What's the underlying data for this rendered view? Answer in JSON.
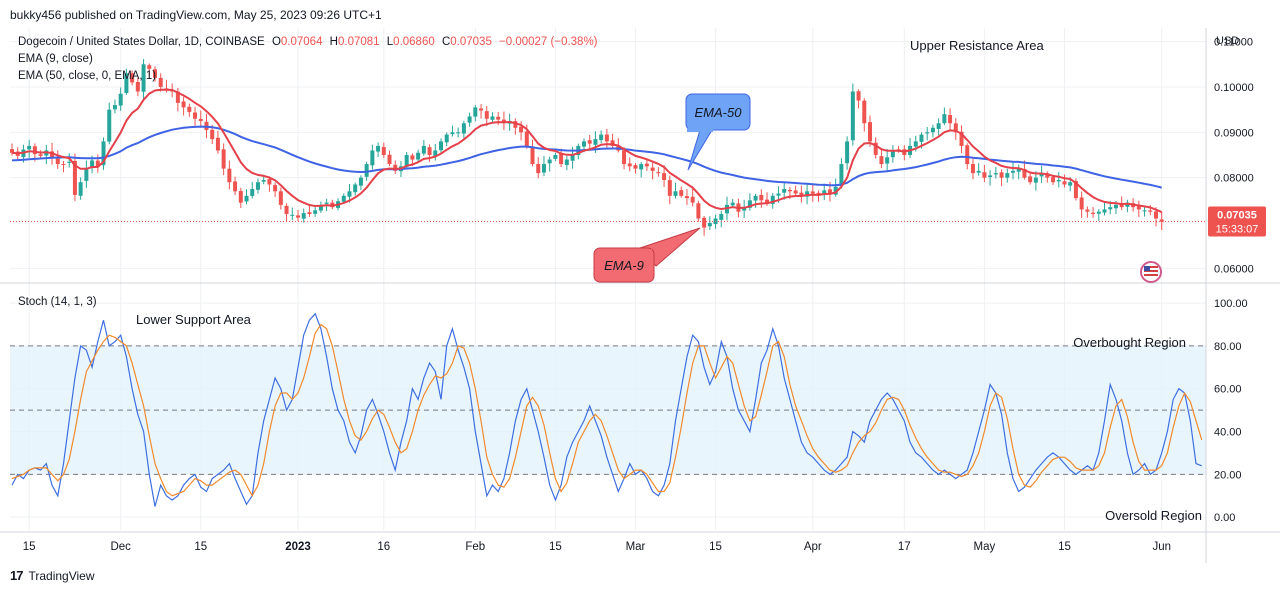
{
  "header": {
    "published": "bukky456 published on TradingView.com, May 25, 2023 09:26 UTC+1"
  },
  "footer": {
    "brand": "TradingView",
    "logo_text": "17"
  },
  "colors": {
    "up": "#26a69a",
    "down": "#ef5350",
    "ema9": "#e5414a",
    "ema50": "#3f63e4",
    "stoch_k": "#3d6fe0",
    "stoch_d": "#f08a2c",
    "band": "#e3f2fd",
    "grid": "#eef0f3"
  },
  "legend": {
    "symbol": "Dogecoin / United States Dollar, 1D, COINBASE",
    "ohlc": [
      {
        "label": "O",
        "value": "0.07064"
      },
      {
        "label": "H",
        "value": "0.07081"
      },
      {
        "label": "L",
        "value": "0.06860"
      },
      {
        "label": "C",
        "value": "0.07035"
      }
    ],
    "change": "−0.00027 (−0.38%)",
    "ema9": "EMA (9, close)",
    "ema50": "EMA (50, close, 0, EMA, 1)"
  },
  "annotations": {
    "upper_resistance": "Upper Resistance Area",
    "ema50_label": "EMA-50",
    "ema9_label": "EMA-9",
    "stoch_title": "Stoch (14, 1, 3)",
    "lower_support": "Lower Support Area",
    "overbought": "Overbought Region",
    "oversold": "Oversold Region"
  },
  "price_badge": {
    "value": "0.07035",
    "countdown": "15:33:07"
  },
  "chart_data": [
    {
      "type": "candlestick",
      "currency": "USD",
      "ylim": [
        0.057,
        0.113
      ],
      "yticks": [
        "0.06000",
        "0.07000",
        "0.08000",
        "0.09000",
        "0.10000",
        "0.11000"
      ],
      "xticks": [
        {
          "label": "15",
          "idx": 3
        },
        {
          "label": "Dec",
          "idx": 19
        },
        {
          "label": "15",
          "idx": 33
        },
        {
          "label": "2023",
          "idx": 50
        },
        {
          "label": "16",
          "idx": 65
        },
        {
          "label": "Feb",
          "idx": 81
        },
        {
          "label": "15",
          "idx": 95
        },
        {
          "label": "Mar",
          "idx": 109
        },
        {
          "label": "15",
          "idx": 123
        },
        {
          "label": "Apr",
          "idx": 140
        },
        {
          "label": "17",
          "idx": 156
        },
        {
          "label": "May",
          "idx": 170
        },
        {
          "label": "15",
          "idx": 184
        },
        {
          "label": "Jun",
          "idx": 201
        }
      ],
      "close": [
        0.0855,
        0.0848,
        0.0862,
        0.087,
        0.0852,
        0.0848,
        0.086,
        0.0845,
        0.083,
        0.083,
        0.0835,
        0.0762,
        0.079,
        0.082,
        0.0838,
        0.0825,
        0.088,
        0.095,
        0.096,
        0.0985,
        0.103,
        0.101,
        0.099,
        0.105,
        0.104,
        0.102,
        0.1,
        0.0995,
        0.099,
        0.0965,
        0.0955,
        0.0945,
        0.093,
        0.0925,
        0.0905,
        0.0885,
        0.086,
        0.082,
        0.079,
        0.077,
        0.0745,
        0.076,
        0.0775,
        0.079,
        0.0795,
        0.0785,
        0.077,
        0.074,
        0.072,
        0.0718,
        0.0712,
        0.0722,
        0.072,
        0.0728,
        0.074,
        0.0745,
        0.0735,
        0.0748,
        0.076,
        0.077,
        0.0785,
        0.08,
        0.083,
        0.086,
        0.087,
        0.085,
        0.083,
        0.0815,
        0.0825,
        0.085,
        0.084,
        0.0855,
        0.087,
        0.085,
        0.086,
        0.088,
        0.0895,
        0.09,
        0.09,
        0.092,
        0.0935,
        0.0955,
        0.0948,
        0.093,
        0.0935,
        0.0928,
        0.092,
        0.0925,
        0.091,
        0.09,
        0.087,
        0.083,
        0.081,
        0.083,
        0.084,
        0.085,
        0.083,
        0.084,
        0.085,
        0.087,
        0.088,
        0.0875,
        0.0885,
        0.0895,
        0.088,
        0.087,
        0.086,
        0.083,
        0.0825,
        0.082,
        0.083,
        0.0825,
        0.0815,
        0.081,
        0.0795,
        0.076,
        0.077,
        0.076,
        0.0755,
        0.0745,
        0.071,
        0.069,
        0.07,
        0.071,
        0.072,
        0.074,
        0.0745,
        0.0725,
        0.0735,
        0.075,
        0.076,
        0.075,
        0.0745,
        0.076,
        0.0765,
        0.0775,
        0.077,
        0.0765,
        0.076,
        0.077,
        0.0765,
        0.076,
        0.0772,
        0.0765,
        0.078,
        0.083,
        0.088,
        0.099,
        0.097,
        0.092,
        0.088,
        0.085,
        0.083,
        0.0845,
        0.086,
        0.086,
        0.085,
        0.087,
        0.088,
        0.0895,
        0.09,
        0.091,
        0.092,
        0.094,
        0.092,
        0.09,
        0.087,
        0.083,
        0.081,
        0.0815,
        0.08,
        0.0805,
        0.081,
        0.08,
        0.081,
        0.0815,
        0.082,
        0.08,
        0.079,
        0.08,
        0.081,
        0.08,
        0.079,
        0.0795,
        0.0785,
        0.079,
        0.0755,
        0.073,
        0.0725,
        0.072,
        0.0725,
        0.073,
        0.0735,
        0.074,
        0.0735,
        0.0745,
        0.0735,
        0.073,
        0.0728,
        0.0725,
        0.071,
        0.0703
      ],
      "ema_labels": [
        "EMA (9, close)",
        "EMA (50, close, 0, EMA, 1)"
      ],
      "last_price": 0.07035
    },
    {
      "type": "line",
      "title": "Stoch (14, 1, 3)",
      "ylim": [
        -6,
        108
      ],
      "yticks": [
        "0.00",
        "20.00",
        "40.00",
        "60.00",
        "80.00",
        "100.00"
      ],
      "bands": [
        20,
        50,
        80
      ],
      "k": [
        15,
        20,
        18,
        22,
        23,
        22,
        25,
        15,
        10,
        25,
        45,
        65,
        80,
        78,
        70,
        82,
        92,
        80,
        82,
        85,
        75,
        60,
        48,
        40,
        20,
        5,
        15,
        10,
        8,
        10,
        15,
        18,
        20,
        14,
        12,
        18,
        20,
        22,
        25,
        18,
        12,
        6,
        10,
        30,
        45,
        55,
        65,
        60,
        50,
        55,
        70,
        85,
        92,
        95,
        88,
        75,
        60,
        50,
        45,
        35,
        30,
        38,
        50,
        55,
        48,
        40,
        30,
        22,
        35,
        45,
        60,
        55,
        65,
        72,
        68,
        55,
        80,
        88,
        78,
        70,
        60,
        40,
        25,
        10,
        15,
        12,
        18,
        30,
        45,
        55,
        60,
        50,
        40,
        28,
        15,
        8,
        15,
        28,
        35,
        40,
        45,
        52,
        45,
        38,
        28,
        20,
        12,
        18,
        25,
        20,
        22,
        18,
        12,
        10,
        15,
        25,
        45,
        60,
        75,
        85,
        82,
        70,
        62,
        68,
        82,
        75,
        60,
        50,
        45,
        40,
        55,
        72,
        78,
        88,
        80,
        65,
        55,
        45,
        35,
        30,
        28,
        25,
        22,
        20,
        22,
        25,
        28,
        40,
        38,
        35,
        45,
        50,
        55,
        58,
        55,
        50,
        45,
        35,
        30,
        28,
        25,
        22,
        20,
        22,
        20,
        18,
        20,
        22,
        30,
        40,
        50,
        62,
        58,
        48,
        30,
        18,
        12,
        14,
        18,
        22,
        25,
        28,
        30,
        28,
        25,
        22,
        20,
        22,
        24,
        22,
        30,
        45,
        62,
        55,
        45,
        30,
        20,
        22,
        25,
        20,
        22,
        30,
        40,
        55,
        60,
        58,
        45,
        25,
        24
      ],
      "d": [
        18,
        19,
        20,
        22,
        23,
        23,
        23,
        20,
        17,
        20,
        27,
        40,
        55,
        68,
        73,
        78,
        82,
        85,
        84,
        82,
        80,
        72,
        62,
        52,
        38,
        25,
        18,
        12,
        10,
        11,
        12,
        15,
        18,
        17,
        15,
        15,
        17,
        19,
        21,
        22,
        20,
        15,
        10,
        15,
        25,
        40,
        52,
        58,
        58,
        55,
        58,
        65,
        75,
        86,
        90,
        88,
        80,
        68,
        55,
        45,
        38,
        36,
        40,
        46,
        50,
        48,
        42,
        35,
        30,
        32,
        40,
        50,
        57,
        62,
        66,
        65,
        67,
        72,
        80,
        79,
        72,
        60,
        45,
        28,
        20,
        15,
        14,
        18,
        28,
        40,
        52,
        56,
        52,
        43,
        30,
        18,
        12,
        16,
        25,
        35,
        40,
        45,
        48,
        45,
        38,
        30,
        22,
        18,
        20,
        22,
        22,
        20,
        16,
        12,
        12,
        16,
        28,
        42,
        58,
        72,
        80,
        80,
        72,
        65,
        70,
        75,
        72,
        62,
        52,
        45,
        47,
        57,
        68,
        80,
        82,
        75,
        62,
        52,
        45,
        38,
        32,
        28,
        25,
        22,
        21,
        22,
        24,
        30,
        35,
        38,
        40,
        44,
        50,
        55,
        56,
        55,
        50,
        43,
        37,
        32,
        28,
        25,
        22,
        21,
        21,
        20,
        19,
        20,
        24,
        30,
        40,
        52,
        58,
        56,
        46,
        32,
        20,
        15,
        14,
        17,
        21,
        24,
        27,
        28,
        28,
        26,
        23,
        22,
        22,
        22,
        24,
        30,
        42,
        52,
        55,
        47,
        35,
        26,
        22,
        22,
        22,
        24,
        30,
        42,
        52,
        58,
        54,
        45,
        36
      ]
    }
  ]
}
